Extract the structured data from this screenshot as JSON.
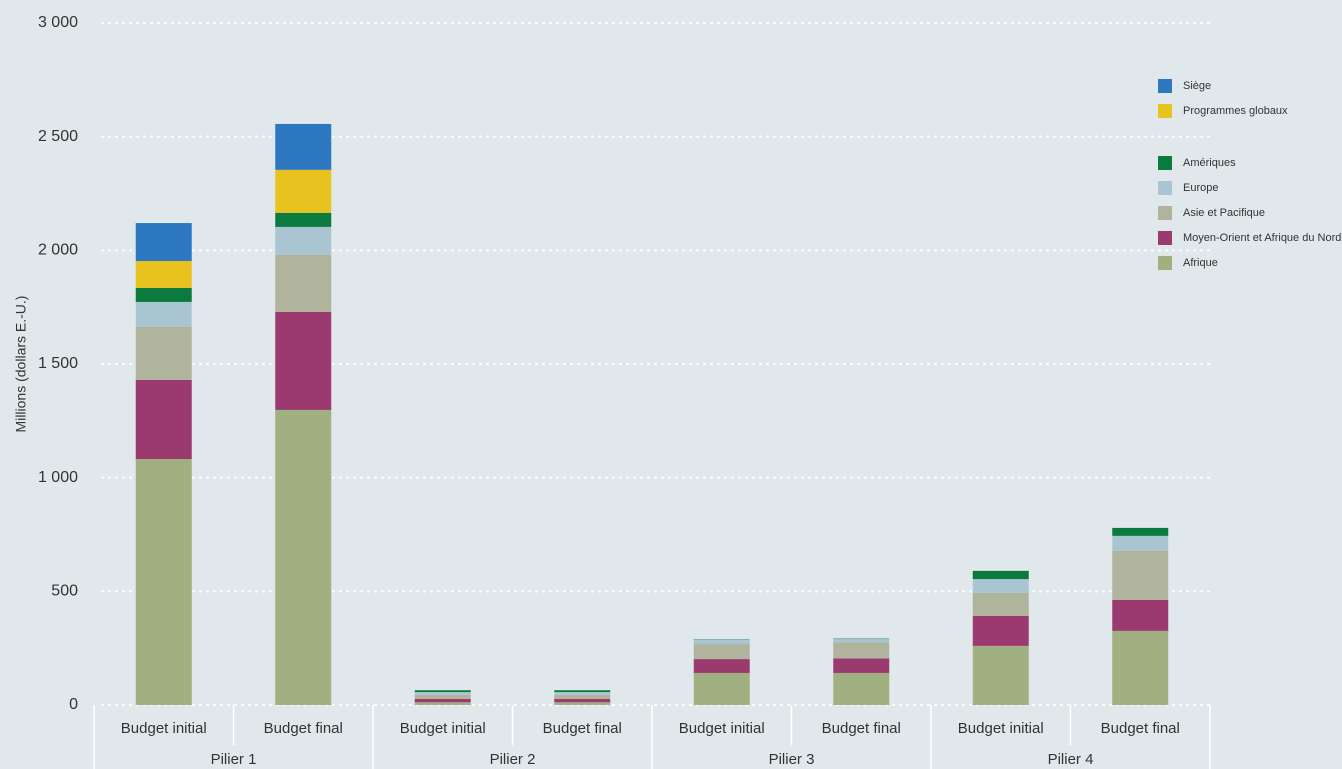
{
  "chart_data": {
    "type": "stacked-bar",
    "y_label": "Millions (dollars E.-U.)",
    "categories": [
      "Budget initial",
      "Budget final",
      "Budget initial",
      "Budget final",
      "Budget initial",
      "Budget final",
      "Budget initial",
      "Budget final"
    ],
    "groups": [
      "Pilier 1",
      "Pilier 2",
      "Pilier 3",
      "Pilier 4"
    ],
    "series": [
      {
        "name": "Afrique",
        "color": "#a0b080",
        "values": [
          1082,
          1298,
          12,
          12,
          141,
          141,
          260,
          326
        ]
      },
      {
        "name": "Moyen-Orient et Afrique du Nord",
        "color": "#9b3a6e",
        "values": [
          348,
          431,
          15,
          15,
          61,
          64,
          132,
          136
        ]
      },
      {
        "name": "Asie et Pacifique",
        "color": "#b1b49c",
        "values": [
          233,
          251,
          18,
          18,
          66,
          70,
          101,
          216
        ]
      },
      {
        "name": "Europe",
        "color": "#a9c5d1",
        "values": [
          110,
          123,
          12,
          12,
          18,
          15,
          61,
          66
        ]
      },
      {
        "name": "Amériques",
        "color": "#0b7a3e",
        "values": [
          62,
          62,
          8,
          8,
          2,
          2,
          36,
          35
        ]
      },
      {
        "name": "Programmes globaux",
        "color": "#e8c21e",
        "values": [
          118,
          189,
          0,
          0,
          0,
          0,
          0,
          0
        ]
      },
      {
        "name": "Siège",
        "color": "#2e78c2",
        "values": [
          167,
          202,
          0,
          0,
          0,
          0,
          0,
          0
        ]
      }
    ],
    "ylim": [
      0,
      3000
    ],
    "yticks": [
      0,
      500,
      {
        "value": 1000,
        "label": "1 000"
      },
      {
        "value": 1500,
        "label": "1 500"
      },
      {
        "value": 2000,
        "label": "2 000"
      },
      {
        "value": 2500,
        "label": "2 500"
      },
      {
        "value": 3000,
        "label": "3 000"
      }
    ],
    "grid": true
  }
}
